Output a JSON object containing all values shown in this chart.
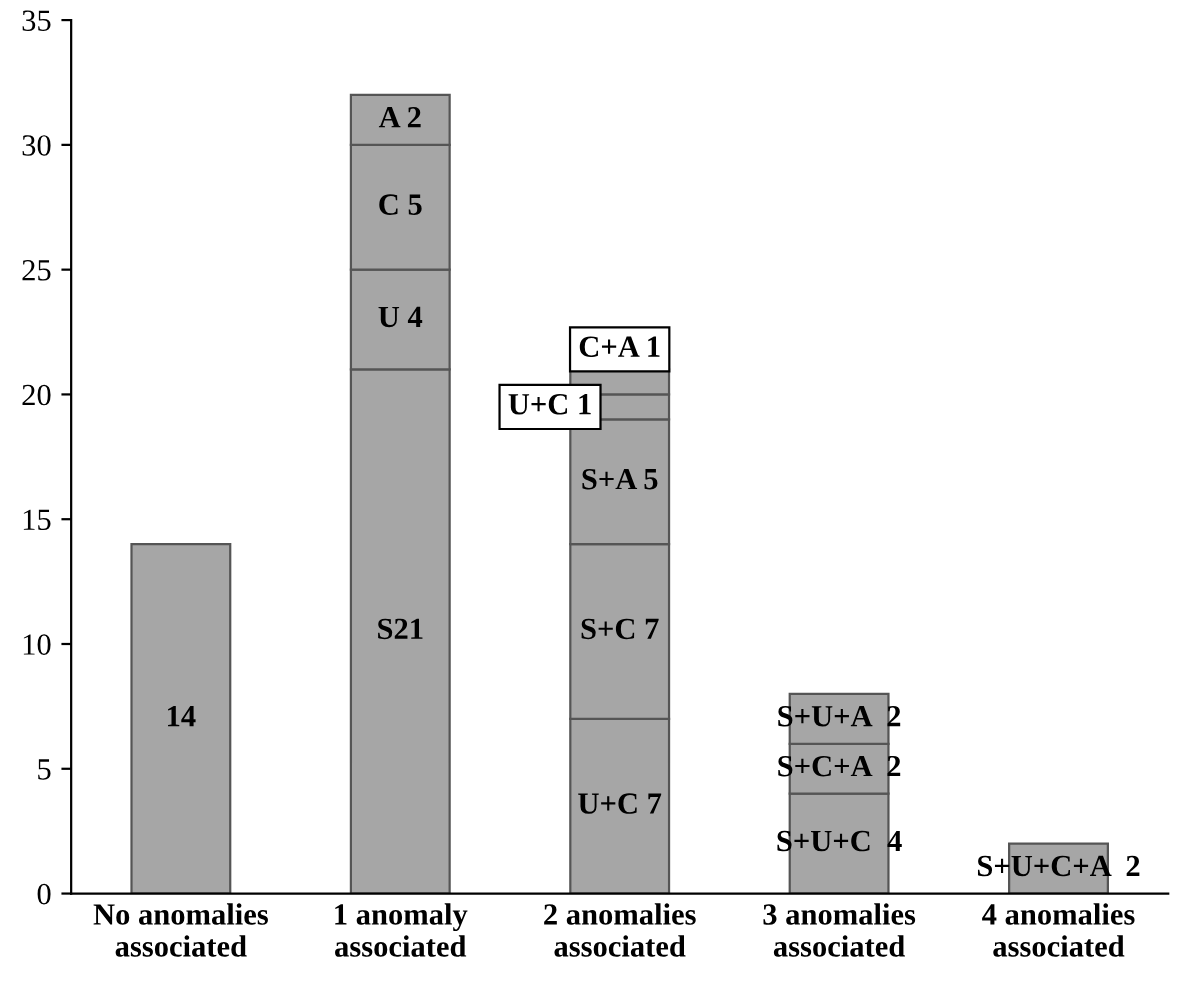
{
  "chart_data": {
    "type": "bar",
    "stacked": true,
    "categories": [
      "No anomalies\nassociated",
      "1 anomaly\nassociated",
      "2 anomalies\nassociated",
      "3 anomalies\nassociated",
      "4 anomalies\nassociated"
    ],
    "series": [
      {
        "color": "#a6a6a6",
        "values": [
          14,
          21,
          7,
          4,
          2
        ],
        "value_labels": [
          "14",
          "S21",
          "U+C 7",
          "S+U+C  4",
          "S+U+C+A  2"
        ]
      },
      {
        "color": "#a6a6a6",
        "values": [
          null,
          4,
          7,
          2,
          null
        ],
        "value_labels": [
          null,
          "U 4",
          "S+C 7",
          "S+C+A  2",
          null
        ]
      },
      {
        "color": "#a6a6a6",
        "values": [
          null,
          5,
          5,
          2,
          null
        ],
        "value_labels": [
          null,
          "C 5",
          "S+A 5",
          "S+U+A  2",
          null
        ]
      },
      {
        "color": "#a6a6a6",
        "values": [
          null,
          2,
          1,
          null,
          null
        ],
        "value_labels": [
          null,
          "A 2",
          "U+C 1",
          null,
          null
        ]
      },
      {
        "color": "#a6a6a6",
        "values": [
          null,
          null,
          1,
          null,
          null
        ],
        "value_labels": [
          null,
          null,
          "C+A 1",
          null,
          null
        ]
      }
    ],
    "ylim": [
      0,
      35
    ],
    "yticks": [
      0,
      5,
      10,
      15,
      20,
      25,
      30,
      35
    ],
    "grid": false,
    "legend": false
  }
}
